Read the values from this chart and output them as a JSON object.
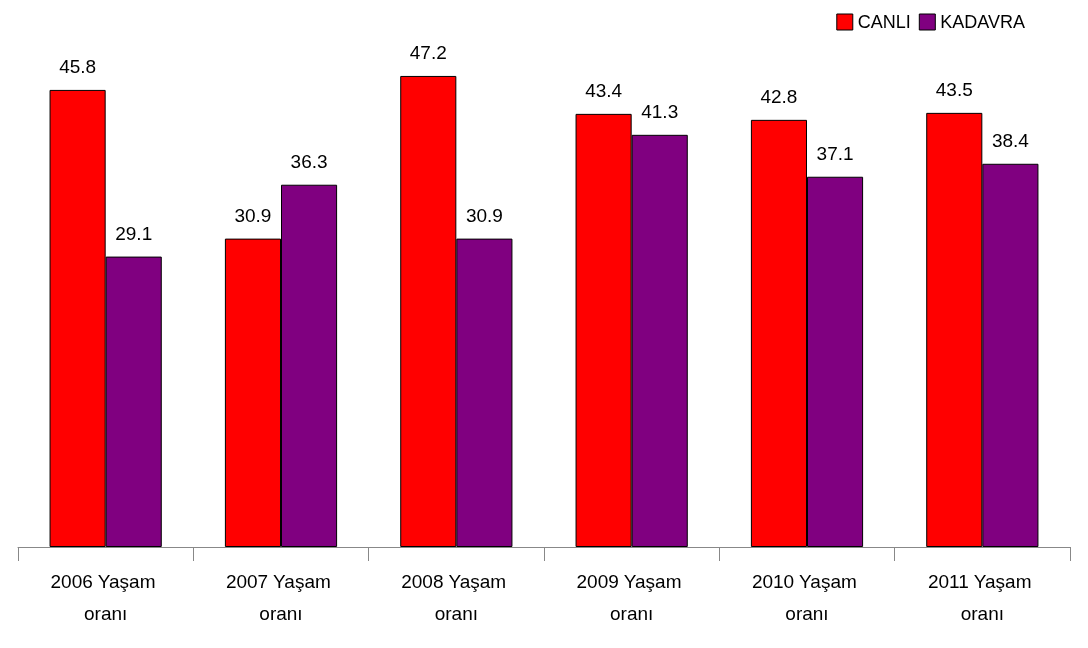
{
  "chart_data": {
    "type": "bar",
    "categories": [
      "2006 Yaşam oranı",
      "2007 Yaşam oranı",
      "2008 Yaşam oranı",
      "2009 Yaşam oranı",
      "2010 Yaşam oranı",
      "2011 Yaşam oranı"
    ],
    "series": [
      {
        "name": "CANLI",
        "color": "#ff0000",
        "values": [
          45.8,
          30.9,
          47.2,
          43.4,
          42.8,
          43.5
        ]
      },
      {
        "name": "KADAVRA",
        "color": "#800080",
        "values": [
          29.1,
          36.3,
          30.9,
          41.3,
          37.1,
          38.4
        ]
      }
    ],
    "data_labels": true,
    "legend": "top right"
  }
}
